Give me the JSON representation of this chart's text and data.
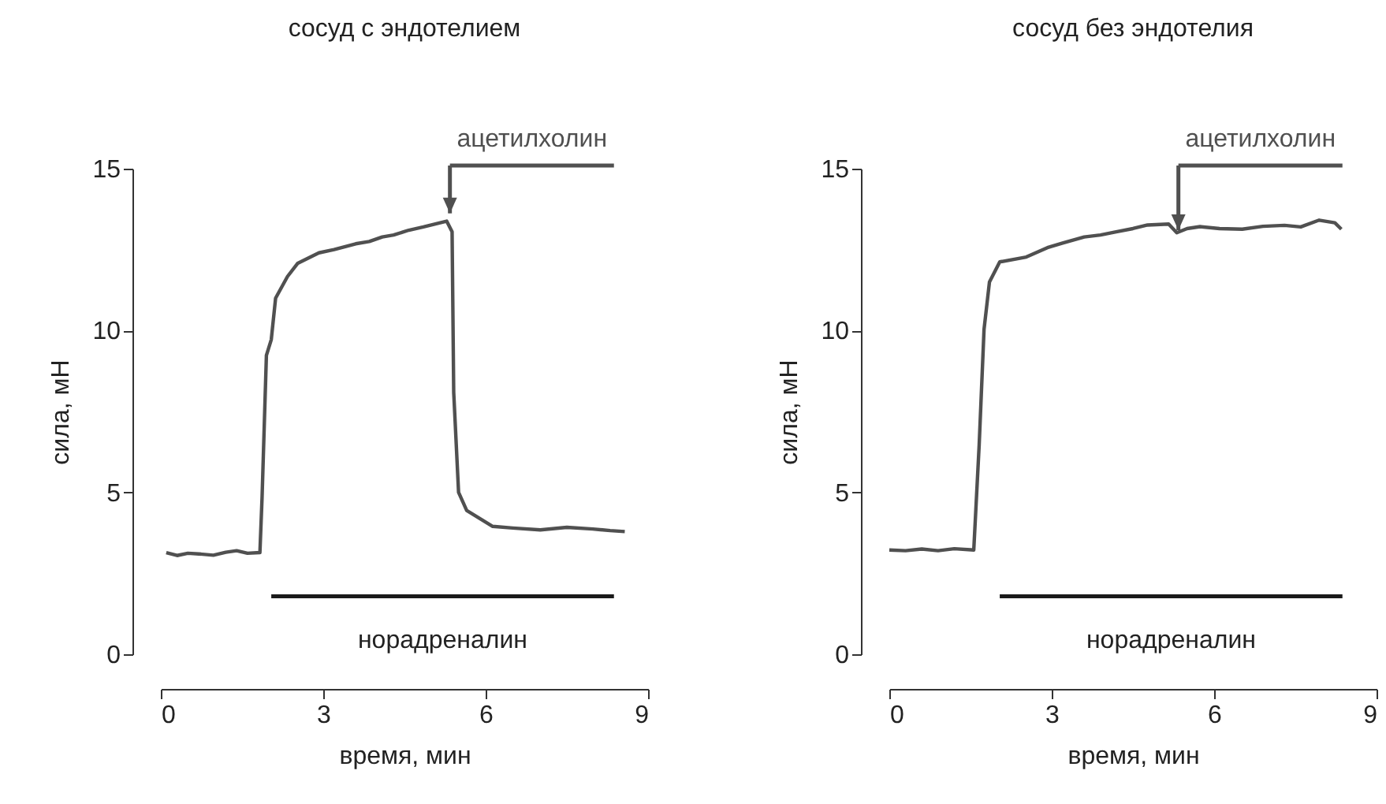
{
  "chart_data": [
    {
      "type": "line",
      "title": "сосуд с эндотелием",
      "xlabel": "время, мин",
      "ylabel": "сила, мН",
      "xlim": [
        0,
        9
      ],
      "ylim": [
        0,
        15
      ],
      "xticks": [
        0,
        3,
        6,
        9
      ],
      "yticks": [
        0,
        5,
        10,
        15
      ],
      "series": [
        {
          "color": "#505050",
          "x": [
            0.1,
            0.3,
            0.5,
            0.7,
            0.97,
            1.2,
            1.4,
            1.6,
            1.83,
            1.87,
            1.95,
            2.04,
            2.12,
            2.34,
            2.53,
            2.92,
            3.2,
            3.6,
            3.85,
            4.09,
            4.3,
            4.58,
            4.85,
            5.16,
            5.28,
            5.38,
            5.41,
            5.5,
            5.65,
            6.13,
            6.5,
            7.01,
            7.5,
            7.98,
            8.3,
            8.57
          ],
          "values": [
            3.14,
            3.05,
            3.12,
            3.1,
            3.06,
            3.15,
            3.2,
            3.12,
            3.14,
            4.84,
            9.23,
            9.72,
            11.0,
            11.67,
            12.08,
            12.4,
            12.5,
            12.68,
            12.75,
            12.89,
            12.95,
            13.1,
            13.2,
            13.33,
            13.38,
            13.05,
            8.09,
            5.0,
            4.44,
            3.95,
            3.9,
            3.84,
            3.92,
            3.87,
            3.82,
            3.79
          ]
        },
        {
          "name": "норадреналин",
          "color": "#1a1a1a",
          "x": [
            2.04,
            8.37
          ],
          "values": [
            1.79,
            1.79
          ]
        }
      ],
      "annotations": [
        {
          "text": "ацетилхолин",
          "x": 5.34,
          "y": 13.62
        }
      ]
    },
    {
      "type": "line",
      "title": "сосуд без эндотелия",
      "xlabel": "время, мин",
      "ylabel": "сила, мН",
      "xlim": [
        0,
        9
      ],
      "ylim": [
        0,
        15
      ],
      "xticks": [
        0,
        3,
        6,
        9
      ],
      "yticks": [
        0,
        5,
        10,
        15
      ],
      "series": [
        {
          "color": "#505050",
          "x": [
            0.0,
            0.3,
            0.6,
            0.9,
            1.2,
            1.56,
            1.66,
            1.75,
            1.85,
            2.04,
            2.53,
            2.92,
            3.2,
            3.6,
            3.9,
            4.19,
            4.5,
            4.77,
            5.16,
            5.31,
            5.5,
            5.74,
            6.1,
            6.52,
            6.9,
            7.3,
            7.6,
            7.94,
            8.23,
            8.35
          ],
          "values": [
            3.22,
            3.2,
            3.25,
            3.2,
            3.26,
            3.22,
            6.47,
            10.04,
            11.5,
            12.12,
            12.27,
            12.56,
            12.7,
            12.89,
            12.95,
            13.05,
            13.15,
            13.26,
            13.29,
            13.02,
            13.15,
            13.21,
            13.15,
            13.13,
            13.22,
            13.25,
            13.2,
            13.41,
            13.33,
            13.13
          ]
        },
        {
          "name": "норадреналин",
          "color": "#1a1a1a",
          "x": [
            2.04,
            8.37
          ],
          "values": [
            1.79,
            1.79
          ]
        }
      ],
      "annotations": [
        {
          "text": "ацетилхолин",
          "x": 5.34,
          "y": 13.1
        }
      ]
    }
  ]
}
